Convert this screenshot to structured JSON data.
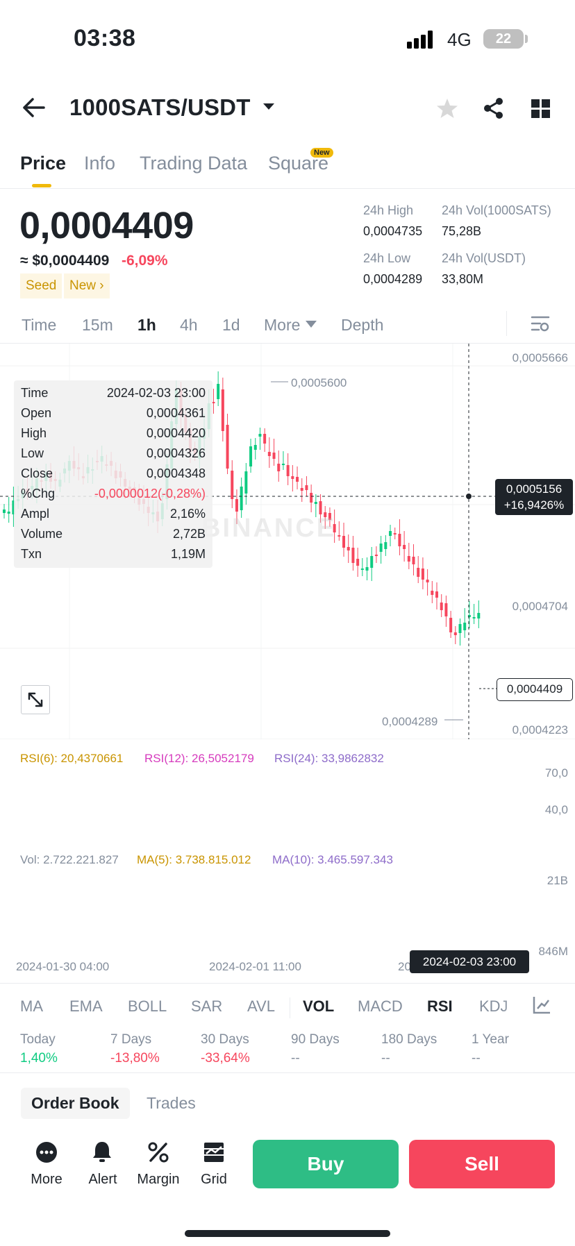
{
  "status_bar": {
    "time": "03:38",
    "network": "4G",
    "battery": "22"
  },
  "header": {
    "pair": "1000SATS/USDT"
  },
  "tabs": [
    {
      "label": "Price"
    },
    {
      "label": "Info"
    },
    {
      "label": "Trading Data"
    },
    {
      "label": "Square",
      "badge": "New"
    }
  ],
  "price": {
    "last": "0,0004409",
    "usd": "≈ $0,0004409",
    "change": "-6,09%",
    "tags": [
      "Seed",
      "New ›"
    ]
  },
  "stats": {
    "high_label": "24h High",
    "high": "0,0004735",
    "vol_base_label": "24h Vol(1000SATS)",
    "vol_base": "75,28B",
    "low_label": "24h Low",
    "low": "0,0004289",
    "vol_quote_label": "24h Vol(USDT)",
    "vol_quote": "33,80M"
  },
  "intervals": [
    "Time",
    "15m",
    "1h",
    "4h",
    "1d",
    "More",
    "Depth"
  ],
  "ohlc": {
    "rows": [
      {
        "k": "Time",
        "v": "2024-02-03 23:00"
      },
      {
        "k": "Open",
        "v": "0,0004361"
      },
      {
        "k": "High",
        "v": "0,0004420"
      },
      {
        "k": "Low",
        "v": "0,0004326"
      },
      {
        "k": "Close",
        "v": "0,0004348"
      },
      {
        "k": "%Chg",
        "v": "-0,0000012(-0,28%)"
      },
      {
        "k": "Ampl",
        "v": "2,16%"
      },
      {
        "k": "Volume",
        "v": "2,72B"
      },
      {
        "k": "Txn",
        "v": "1,19M"
      }
    ]
  },
  "price_axis": [
    "0,0005666",
    "0,0004704",
    "0,0004223"
  ],
  "chart_annotations": {
    "max": "0,0005600",
    "min": "0,0004289",
    "watermark": "BINANCE"
  },
  "crosshair": {
    "price": "0,0005156",
    "pct": "+16,9426%",
    "time": "2024-02-03 23:00"
  },
  "last_price_tag": "0,0004409",
  "rsi": {
    "rsi6": "RSI(6): 20,4370661",
    "rsi12": "RSI(12): 26,5052179",
    "rsi24": "RSI(24): 33,9862832",
    "axis": [
      "70,0",
      "40,0"
    ]
  },
  "volume": {
    "vol": "Vol: 2.722.221.827",
    "ma5": "MA(5): 3.738.815.012",
    "ma10": "MA(10): 3.465.597.343",
    "axis": [
      "21B",
      "846M"
    ]
  },
  "x_dates": [
    "2024-01-30 04:00",
    "2024-02-01 11:00",
    "20"
  ],
  "indicators": [
    "MA",
    "EMA",
    "BOLL",
    "SAR",
    "AVL",
    "VOL",
    "MACD",
    "RSI",
    "KDJ"
  ],
  "performance": [
    {
      "label": "Today",
      "value": "1,40%"
    },
    {
      "label": "7 Days",
      "value": "-13,80%"
    },
    {
      "label": "30 Days",
      "value": "-33,64%"
    },
    {
      "label": "90 Days",
      "value": "--"
    },
    {
      "label": "180 Days",
      "value": "--"
    },
    {
      "label": "1 Year",
      "value": "--"
    }
  ],
  "orderbook_tabs": [
    "Order Book",
    "Trades"
  ],
  "bottom_actions": [
    "More",
    "Alert",
    "Margin",
    "Grid"
  ],
  "buy_label": "Buy",
  "sell_label": "Sell",
  "colors": {
    "up": "#0ecb81",
    "down": "#f6465d",
    "accent": "#f0b90b",
    "rsi6": "#f0b90b",
    "rsi12": "#d63bbd",
    "rsi24": "#8d6bc9"
  }
}
